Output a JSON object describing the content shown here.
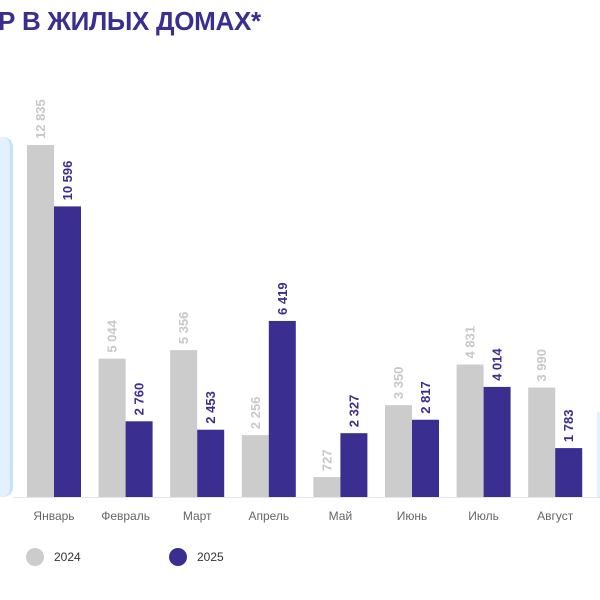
{
  "title": "Р В ЖИЛЫХ ДОМАХ*",
  "colors": {
    "s2024": "#cccccc",
    "s2025": "#3a2e91",
    "title": "#3a2e91",
    "panel": "#e3f0fd"
  },
  "legend": {
    "s2024": "2024",
    "s2025": "2025"
  },
  "chart_data": {
    "type": "bar",
    "title": "Р В ЖИЛЫХ ДОМАХ*",
    "xlabel": "",
    "ylabel": "",
    "ylim": [
      0,
      12835
    ],
    "grid": false,
    "legend_position": "bottom-left",
    "categories": [
      "Январь",
      "Февраль",
      "Март",
      "Апрель",
      "Май",
      "Июнь",
      "Июль",
      "Август"
    ],
    "series": [
      {
        "name": "2024",
        "values": [
          12835,
          5044,
          5356,
          2256,
          727,
          3350,
          4831,
          3990
        ],
        "labels": [
          "12 835",
          "5 044",
          "5 356",
          "2 256",
          "727",
          "3 350",
          "4 831",
          "3 990"
        ]
      },
      {
        "name": "2025",
        "values": [
          10596,
          2760,
          2453,
          6419,
          2327,
          2817,
          4014,
          1783
        ],
        "labels": [
          "10 596",
          "2 760",
          "2 453",
          "6 419",
          "2 327",
          "2 817",
          "4 014",
          "1 783"
        ]
      }
    ]
  }
}
